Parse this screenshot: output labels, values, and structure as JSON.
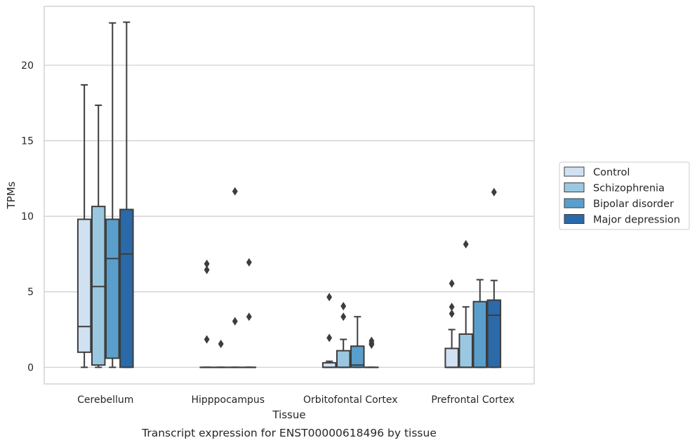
{
  "chart_data": {
    "type": "box",
    "xlabel": "Tissue",
    "ylabel": "TPMs",
    "caption": "Transcript expression for ENST00000618496 by tissue",
    "ylim": [
      -1.1,
      23.9
    ],
    "yticks": [
      0,
      5,
      10,
      15,
      20
    ],
    "grid": "horizontal",
    "legend_position": "right",
    "categories": [
      "Cerebellum",
      "Hipppocampus",
      "Orbitofontal Cortex",
      "Prefrontal Cortex"
    ],
    "series": [
      {
        "name": "Control",
        "color": "#d0e1f2",
        "boxes": [
          {
            "whisker_low": 0,
            "q1": 1.0,
            "median": 2.7,
            "q3": 9.8,
            "whisker_high": 18.7,
            "outliers": []
          },
          {
            "whisker_low": 0,
            "q1": 0,
            "median": 0,
            "q3": 0,
            "whisker_high": 0,
            "outliers": [
              1.85,
              6.45,
              6.85
            ]
          },
          {
            "whisker_low": 0,
            "q1": 0,
            "median": 0,
            "q3": 0.3,
            "whisker_high": 0.4,
            "outliers": [
              1.95,
              4.65
            ]
          },
          {
            "whisker_low": 0,
            "q1": 0,
            "median": 0,
            "q3": 1.25,
            "whisker_high": 2.5,
            "outliers": [
              3.55,
              4.0,
              5.55
            ]
          }
        ]
      },
      {
        "name": "Schizophrenia",
        "color": "#9ac8e0",
        "boxes": [
          {
            "whisker_low": 0,
            "q1": 0.15,
            "median": 5.35,
            "q3": 10.65,
            "whisker_high": 17.35,
            "outliers": []
          },
          {
            "whisker_low": 0,
            "q1": 0,
            "median": 0,
            "q3": 0,
            "whisker_high": 0,
            "outliers": [
              1.55
            ]
          },
          {
            "whisker_low": 0,
            "q1": 0,
            "median": 0,
            "q3": 1.1,
            "whisker_high": 1.85,
            "outliers": [
              3.35,
              4.05
            ]
          },
          {
            "whisker_low": 0,
            "q1": 0,
            "median": 0,
            "q3": 2.2,
            "whisker_high": 4.0,
            "outliers": [
              8.15
            ]
          }
        ]
      },
      {
        "name": "Bipolar disorder",
        "color": "#5a9fcc",
        "boxes": [
          {
            "whisker_low": 0,
            "q1": 0.6,
            "median": 7.2,
            "q3": 9.8,
            "whisker_high": 22.8,
            "outliers": []
          },
          {
            "whisker_low": 0,
            "q1": 0,
            "median": 0,
            "q3": 0,
            "whisker_high": 0,
            "outliers": [
              3.05,
              11.65
            ]
          },
          {
            "whisker_low": 0,
            "q1": 0,
            "median": 0.15,
            "q3": 1.4,
            "whisker_high": 3.35,
            "outliers": []
          },
          {
            "whisker_low": 0,
            "q1": 0,
            "median": 0,
            "q3": 4.35,
            "whisker_high": 5.8,
            "outliers": []
          }
        ]
      },
      {
        "name": "Major depression",
        "color": "#2b6aa8",
        "boxes": [
          {
            "whisker_low": 0,
            "q1": 0,
            "median": 7.5,
            "q3": 10.45,
            "whisker_high": 22.85,
            "outliers": []
          },
          {
            "whisker_low": 0,
            "q1": 0,
            "median": 0,
            "q3": 0,
            "whisker_high": 0,
            "outliers": [
              3.35,
              6.95
            ]
          },
          {
            "whisker_low": 0,
            "q1": 0,
            "median": 0,
            "q3": 0,
            "whisker_high": 0,
            "outliers": [
              1.5,
              1.6,
              1.75
            ]
          },
          {
            "whisker_low": 0,
            "q1": 0,
            "median": 3.45,
            "q3": 4.45,
            "whisker_high": 5.75,
            "outliers": [
              11.6
            ]
          }
        ]
      }
    ]
  }
}
